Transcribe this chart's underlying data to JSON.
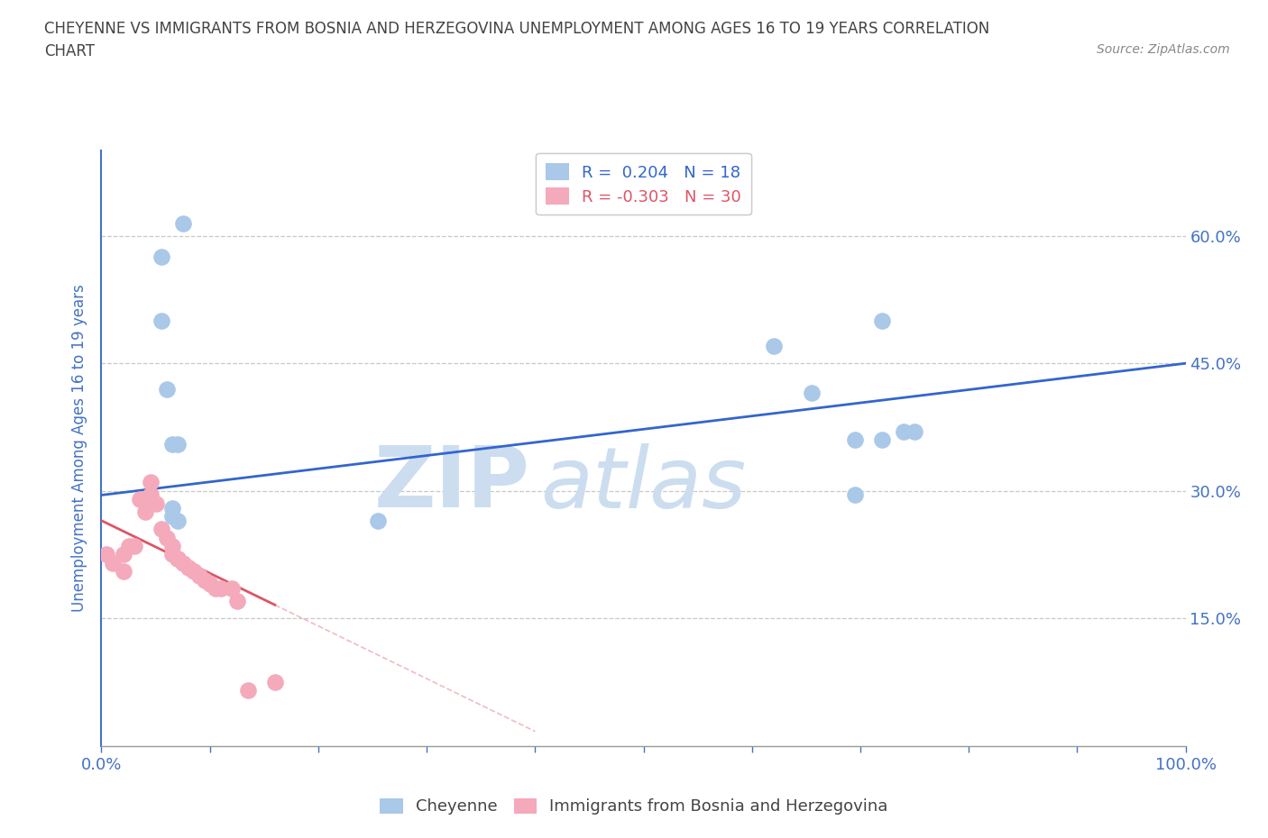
{
  "title_line1": "CHEYENNE VS IMMIGRANTS FROM BOSNIA AND HERZEGOVINA UNEMPLOYMENT AMONG AGES 16 TO 19 YEARS CORRELATION",
  "title_line2": "CHART",
  "source": "Source: ZipAtlas.com",
  "ylabel": "Unemployment Among Ages 16 to 19 years",
  "xmin": 0.0,
  "xmax": 1.0,
  "ymin": 0.0,
  "ymax": 0.7,
  "ytick_vals": [
    0.15,
    0.3,
    0.45,
    0.6
  ],
  "ytick_labels": [
    "15.0%",
    "30.0%",
    "45.0%",
    "60.0%"
  ],
  "xtick_positions": [
    0.0,
    0.1,
    0.2,
    0.3,
    0.4,
    0.5,
    0.6,
    0.7,
    0.8,
    0.9,
    1.0
  ],
  "xtick_labels_show": [
    "0.0%",
    "",
    "",
    "",
    "",
    "",
    "",
    "",
    "",
    "",
    "100.0%"
  ],
  "cheyenne_color": "#aac8e8",
  "bosnia_color": "#f4aabb",
  "trendline_cheyenne_color": "#3366cc",
  "trendline_bosnia_color": "#dd5566",
  "watermark_zip": "ZIP",
  "watermark_atlas": "atlas",
  "watermark_color": "#ccddf0",
  "cheyenne_x": [
    0.055,
    0.075,
    0.055,
    0.06,
    0.065,
    0.07,
    0.065,
    0.065,
    0.07,
    0.255,
    0.62,
    0.655,
    0.695,
    0.695,
    0.72,
    0.72,
    0.74,
    0.75
  ],
  "cheyenne_y": [
    0.575,
    0.615,
    0.5,
    0.42,
    0.355,
    0.355,
    0.28,
    0.27,
    0.265,
    0.265,
    0.47,
    0.415,
    0.295,
    0.36,
    0.36,
    0.5,
    0.37,
    0.37
  ],
  "bosnia_x": [
    0.005,
    0.01,
    0.02,
    0.02,
    0.025,
    0.03,
    0.035,
    0.04,
    0.04,
    0.045,
    0.045,
    0.05,
    0.055,
    0.06,
    0.065,
    0.065,
    0.07,
    0.07,
    0.075,
    0.08,
    0.085,
    0.09,
    0.095,
    0.1,
    0.105,
    0.11,
    0.12,
    0.125,
    0.135,
    0.16
  ],
  "bosnia_y": [
    0.225,
    0.215,
    0.225,
    0.205,
    0.235,
    0.235,
    0.29,
    0.29,
    0.275,
    0.31,
    0.295,
    0.285,
    0.255,
    0.245,
    0.235,
    0.225,
    0.22,
    0.22,
    0.215,
    0.21,
    0.205,
    0.2,
    0.195,
    0.19,
    0.185,
    0.185,
    0.185,
    0.17,
    0.065,
    0.075
  ],
  "background_color": "#ffffff",
  "grid_color": "#c8c8c8",
  "axis_color": "#4472c4",
  "title_color": "#444444",
  "source_color": "#888888",
  "legend_cheyenne_label": "R =  0.204   N = 18",
  "legend_bosnia_label": "R = -0.303   N = 30",
  "trendline_cheyenne_intercept": 0.295,
  "trendline_cheyenne_slope": 0.155,
  "trendline_bosnia_intercept": 0.265,
  "trendline_bosnia_slope": -0.62
}
